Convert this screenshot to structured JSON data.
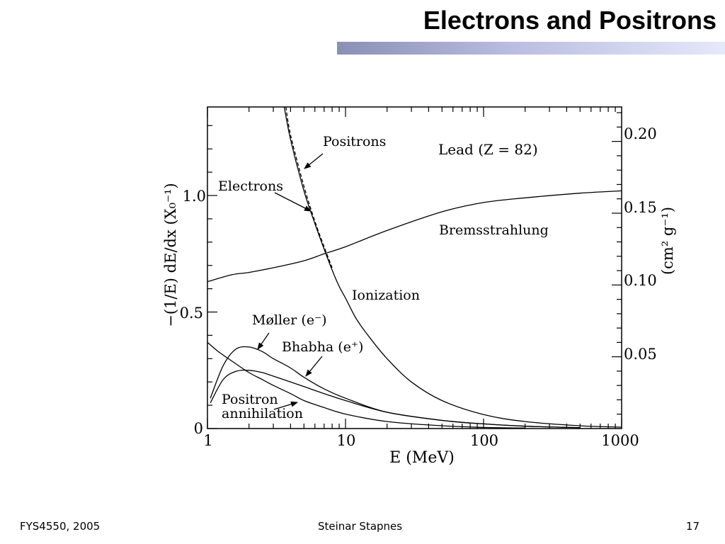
{
  "slide": {
    "title": "Electrons and Positrons",
    "footer_left": "FYS4550, 2005",
    "footer_center": "Steinar Stapnes",
    "footer_right": "17"
  },
  "colors": {
    "title_bar_dark": "#8a8fb5",
    "title_bar_light": "#e6e8fb",
    "ink": "#000000"
  },
  "chart_data": {
    "type": "line",
    "title": "Lead (Z = 82)",
    "xlabel": "E (MeV)",
    "ylabel": "−(1/E) dE/dx (X₀⁻¹)",
    "ylabel_right": "(cm² g⁻¹)",
    "xscale": "log",
    "xlim": [
      1,
      1000
    ],
    "ylim": [
      0,
      1.38
    ],
    "ylim_right": [
      0,
      0.224
    ],
    "grid": false,
    "x_ticks": [
      "1",
      "10",
      "100",
      "1000"
    ],
    "y_ticks": [
      "0",
      "0.5",
      "1.0"
    ],
    "y_right_ticks": [
      "0.05",
      "0.10",
      "0.15",
      "0.20"
    ],
    "series": [
      {
        "name": "Bremsstrahlung",
        "style": "solid",
        "x": [
          1,
          1.5,
          2,
          3,
          5,
          7,
          10,
          20,
          50,
          100,
          200,
          500,
          1000
        ],
        "y": [
          0.63,
          0.66,
          0.67,
          0.69,
          0.72,
          0.75,
          0.78,
          0.85,
          0.93,
          0.97,
          0.99,
          1.01,
          1.02
        ]
      },
      {
        "name": "Ionization",
        "style": "solid",
        "x": [
          3.6,
          4,
          5,
          6,
          7,
          8,
          9,
          10,
          12,
          15,
          20,
          30,
          50,
          100,
          200,
          500,
          1000
        ],
        "y": [
          1.38,
          1.24,
          1.02,
          0.88,
          0.77,
          0.68,
          0.61,
          0.56,
          0.47,
          0.39,
          0.3,
          0.2,
          0.12,
          0.06,
          0.03,
          0.012,
          0.006
        ]
      },
      {
        "name": "Positrons",
        "style": "dashed",
        "x": [
          3.7,
          4,
          5,
          6,
          7,
          8
        ],
        "y": [
          1.38,
          1.26,
          1.04,
          0.89,
          0.78,
          0.69
        ]
      },
      {
        "name": "Møller (e⁻)",
        "style": "solid",
        "x": [
          1.05,
          1.3,
          1.6,
          2,
          2.5,
          3,
          4,
          5,
          7,
          10,
          20,
          50,
          100,
          200,
          500
        ],
        "y": [
          0.13,
          0.27,
          0.34,
          0.35,
          0.33,
          0.3,
          0.26,
          0.22,
          0.17,
          0.13,
          0.07,
          0.035,
          0.02,
          0.01,
          0.004
        ]
      },
      {
        "name": "Bhabha (e⁺)",
        "style": "solid",
        "x": [
          1.05,
          1.3,
          1.6,
          2,
          2.5,
          3,
          4,
          5,
          7,
          10,
          20,
          50,
          100,
          200,
          500
        ],
        "y": [
          0.11,
          0.21,
          0.245,
          0.25,
          0.24,
          0.225,
          0.2,
          0.18,
          0.15,
          0.12,
          0.07,
          0.035,
          0.02,
          0.01,
          0.004
        ]
      },
      {
        "name": "Positron annihilation",
        "style": "solid",
        "x": [
          1,
          1.2,
          1.5,
          2,
          2.5,
          3,
          4,
          5,
          7,
          10,
          20,
          50,
          100,
          200
        ],
        "y": [
          0.37,
          0.33,
          0.29,
          0.24,
          0.21,
          0.185,
          0.15,
          0.12,
          0.09,
          0.062,
          0.03,
          0.012,
          0.005,
          0.002
        ]
      }
    ],
    "annotations": {
      "positrons": "Positrons",
      "lead": "Lead (Z = 82)",
      "electrons": "Electrons",
      "bremsstrahlung": "Bremsstrahlung",
      "ionization": "Ionization",
      "moller": "Møller (e⁻)",
      "bhabha": "Bhabha (e⁺)",
      "positron_annihilation_1": "Positron",
      "positron_annihilation_2": "annihilation"
    }
  }
}
